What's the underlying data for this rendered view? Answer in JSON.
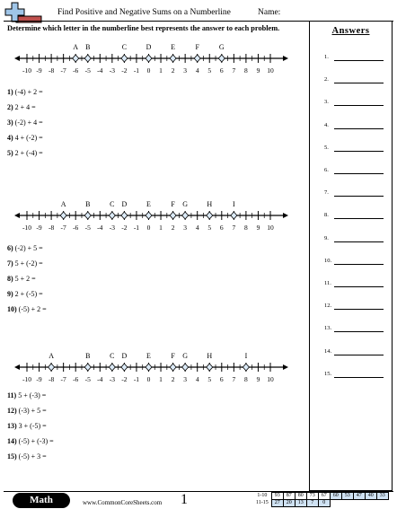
{
  "header": {
    "title": "Find Positive and Negative Sums on a Numberline",
    "name_label": "Name:",
    "instructions": "Determine which letter in the numberline best represents the answer to each problem."
  },
  "answers": {
    "title": "Answers",
    "rows": [
      "1.",
      "2.",
      "3.",
      "4.",
      "5.",
      "6.",
      "7.",
      "8.",
      "9.",
      "10.",
      "11.",
      "12.",
      "13.",
      "14.",
      "15."
    ]
  },
  "numberlines": [
    {
      "ticks": [
        "-10",
        "-9",
        "-8",
        "-7",
        "-6",
        "-5",
        "-4",
        "-3",
        "-2",
        "-1",
        "0",
        "1",
        "2",
        "3",
        "4",
        "5",
        "6",
        "7",
        "8",
        "9",
        "10"
      ],
      "points": [
        {
          "letter": "A",
          "value": -6
        },
        {
          "letter": "B",
          "value": -5
        },
        {
          "letter": "C",
          "value": -2
        },
        {
          "letter": "D",
          "value": 0
        },
        {
          "letter": "E",
          "value": 2
        },
        {
          "letter": "F",
          "value": 4
        },
        {
          "letter": "G",
          "value": 6
        }
      ]
    },
    {
      "ticks": [
        "-10",
        "-9",
        "-8",
        "-7",
        "-6",
        "-5",
        "-4",
        "-3",
        "-2",
        "-1",
        "0",
        "1",
        "2",
        "3",
        "4",
        "5",
        "6",
        "7",
        "8",
        "9",
        "10"
      ],
      "points": [
        {
          "letter": "A",
          "value": -7
        },
        {
          "letter": "B",
          "value": -5
        },
        {
          "letter": "C",
          "value": -3
        },
        {
          "letter": "D",
          "value": -2
        },
        {
          "letter": "E",
          "value": 0
        },
        {
          "letter": "F",
          "value": 2
        },
        {
          "letter": "G",
          "value": 3
        },
        {
          "letter": "H",
          "value": 5
        },
        {
          "letter": "I",
          "value": 7
        }
      ]
    },
    {
      "ticks": [
        "-10",
        "-9",
        "-8",
        "-7",
        "-6",
        "-5",
        "-4",
        "-3",
        "-2",
        "-1",
        "0",
        "1",
        "2",
        "3",
        "4",
        "5",
        "6",
        "7",
        "8",
        "9",
        "10"
      ],
      "points": [
        {
          "letter": "A",
          "value": -8
        },
        {
          "letter": "B",
          "value": -5
        },
        {
          "letter": "C",
          "value": -3
        },
        {
          "letter": "D",
          "value": -2
        },
        {
          "letter": "E",
          "value": 0
        },
        {
          "letter": "F",
          "value": 2
        },
        {
          "letter": "G",
          "value": 3
        },
        {
          "letter": "H",
          "value": 5
        },
        {
          "letter": "I",
          "value": 8
        }
      ]
    }
  ],
  "problems": [
    {
      "num": "1)",
      "expr": "(-4) + 2 ="
    },
    {
      "num": "2)",
      "expr": "2 + 4 ="
    },
    {
      "num": "3)",
      "expr": "(-2) + 4 ="
    },
    {
      "num": "4)",
      "expr": "4 + (-2) ="
    },
    {
      "num": "5)",
      "expr": "2 + (-4) ="
    },
    {
      "num": "6)",
      "expr": "(-2) + 5 ="
    },
    {
      "num": "7)",
      "expr": "5 + (-2) ="
    },
    {
      "num": "8)",
      "expr": "5 + 2 ="
    },
    {
      "num": "9)",
      "expr": "2 + (-5) ="
    },
    {
      "num": "10)",
      "expr": "(-5) + 2 ="
    },
    {
      "num": "11)",
      "expr": "5 + (-3) ="
    },
    {
      "num": "12)",
      "expr": "(-3) + 5 ="
    },
    {
      "num": "13)",
      "expr": "3 + (-5) ="
    },
    {
      "num": "14)",
      "expr": "(-5) + (-3) ="
    },
    {
      "num": "15)",
      "expr": "(-5) + 3 ="
    }
  ],
  "footer": {
    "subject": "Math",
    "site": "www.CommonCoreSheets.com",
    "page": "1",
    "key": [
      {
        "label": "1-10",
        "cells": [
          "93",
          "87",
          "80",
          "73",
          "67",
          "60",
          "53",
          "47",
          "40",
          "33"
        ]
      },
      {
        "label": "11-15",
        "cells": [
          "27",
          "20",
          "13",
          "7",
          "0"
        ]
      }
    ]
  },
  "colors": {
    "logo_plus": "#9fc5e8",
    "logo_bar": "#c0504d",
    "point_fill": "#dbeaf7",
    "key_shade": "#cfe2f3"
  }
}
